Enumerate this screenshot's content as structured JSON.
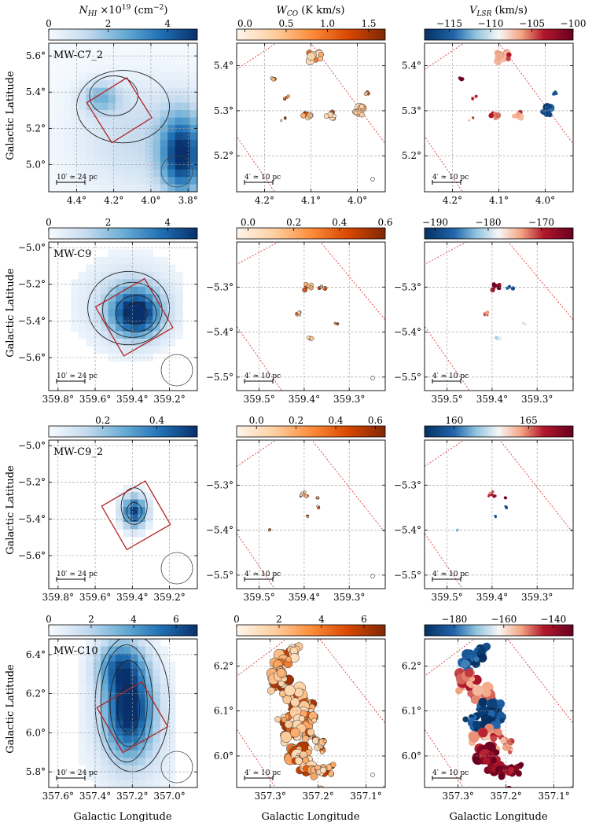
{
  "chart_data": {
    "type": "heatmap",
    "columns": [
      {
        "colorbar_title": "N_HI ×10^19 (cm^−2)",
        "title_main": "N",
        "title_sub": "HI",
        "title_rest": " ×10",
        "title_sup": "19",
        "title_unit": " (cm",
        "title_unit_sup": "−2",
        "title_end": ")",
        "colormap": "Blues"
      },
      {
        "colorbar_title": "W_CO (K km/s)",
        "title_main": "W",
        "title_sub": "CO",
        "title_rest": " (K km/s)",
        "colormap": "Oranges"
      },
      {
        "colorbar_title": "V_LSR (km/s)",
        "title_main": "V",
        "title_sub": "LSR",
        "title_rest": " (km/s)",
        "colormap": "RdBu_r"
      }
    ],
    "xlabel": "Galactic Longitude",
    "ylabel": "Galactic Latitude",
    "rows": [
      {
        "cloud": "MW-C7_2",
        "hi": {
          "cbar_ticks": [
            "0",
            "2",
            "4"
          ],
          "cbar_range": [
            0,
            5
          ],
          "xlim": [
            4.55,
            3.75
          ],
          "ylim": [
            4.85,
            5.67
          ],
          "xticks": [
            "4.4°",
            "4.2°",
            "4.0°",
            "3.8°"
          ],
          "xtick_vals": [
            4.4,
            4.2,
            4.0,
            3.8
          ],
          "yticks": [
            "5.0°",
            "5.2°",
            "5.4°",
            "5.6°"
          ],
          "ytick_vals": [
            5.0,
            5.2,
            5.4,
            5.6
          ],
          "scalebar": "10′ ≃ 24 pc"
        },
        "co": {
          "cbar_ticks": [
            "0.0",
            "0.5",
            "1.0",
            "1.5"
          ],
          "cbar_range": [
            -0.1,
            1.7
          ],
          "xlim": [
            4.26,
            3.94
          ],
          "ylim": [
            5.12,
            5.45
          ],
          "xticks": [
            "4.2°",
            "4.1°",
            "4.0°"
          ],
          "xtick_vals": [
            4.2,
            4.1,
            4.0
          ],
          "yticks": [
            "5.2°",
            "5.3°",
            "5.4°"
          ],
          "ytick_vals": [
            5.2,
            5.3,
            5.4
          ],
          "scalebar": "4′ ≃ 10 pc"
        },
        "v": {
          "cbar_ticks": [
            "−115",
            "−110",
            "−105",
            "−100"
          ],
          "cbar_range": [
            -118,
            -100
          ],
          "xlim": [
            4.26,
            3.94
          ],
          "ylim": [
            5.12,
            5.45
          ],
          "xticks": [
            "4.2°",
            "4.1°",
            "4.0°"
          ],
          "xtick_vals": [
            4.2,
            4.1,
            4.0
          ],
          "yticks": [
            "5.2°",
            "5.3°",
            "5.4°"
          ],
          "ytick_vals": [
            5.2,
            5.3,
            5.4
          ],
          "scalebar": "4′ ≃ 10 pc"
        }
      },
      {
        "cloud": "MW-C9",
        "hi": {
          "cbar_ticks": [
            "0",
            "2",
            "4"
          ],
          "cbar_range": [
            0,
            5
          ],
          "xlim": [
            359.85,
            359.05
          ],
          "ylim": [
            -5.78,
            -4.97
          ],
          "xticks": [
            "359.8°",
            "359.6°",
            "359.4°",
            "359.2°"
          ],
          "xtick_vals": [
            359.8,
            359.6,
            359.4,
            359.2
          ],
          "yticks": [
            "−5.6°",
            "−5.4°",
            "−5.2°",
            "−5.0°"
          ],
          "ytick_vals": [
            -5.6,
            -5.4,
            -5.2,
            -5.0
          ],
          "scalebar": "10′ ≃ 24 pc"
        },
        "co": {
          "cbar_ticks": [
            "0.0",
            "0.2",
            "0.4",
            "0.6"
          ],
          "cbar_range": [
            -0.05,
            0.6
          ],
          "xlim": [
            359.55,
            359.22
          ],
          "ylim": [
            -5.53,
            -5.2
          ],
          "xticks": [
            "359.5°",
            "359.4°",
            "359.3°"
          ],
          "xtick_vals": [
            359.5,
            359.4,
            359.3
          ],
          "yticks": [
            "−5.5°",
            "−5.4°",
            "−5.3°"
          ],
          "ytick_vals": [
            -5.5,
            -5.4,
            -5.3
          ],
          "scalebar": "4′ ≃ 10 pc"
        },
        "v": {
          "cbar_ticks": [
            "−190",
            "−180",
            "−170"
          ],
          "cbar_range": [
            -192,
            -164
          ],
          "xlim": [
            359.55,
            359.22
          ],
          "ylim": [
            -5.53,
            -5.2
          ],
          "xticks": [
            "359.5°",
            "359.4°",
            "359.3°"
          ],
          "xtick_vals": [
            359.5,
            359.4,
            359.3
          ],
          "yticks": [
            "−5.5°",
            "−5.4°",
            "−5.3°"
          ],
          "ytick_vals": [
            -5.5,
            -5.4,
            -5.3
          ],
          "scalebar": "4′ ≃ 10 pc"
        }
      },
      {
        "cloud": "MW-C9_2",
        "hi": {
          "cbar_ticks": [
            "0.2",
            "0.4"
          ],
          "cbar_range": [
            0,
            0.55
          ],
          "xlim": [
            359.85,
            359.05
          ],
          "ylim": [
            -5.78,
            -4.97
          ],
          "xticks": [
            "359.8°",
            "359.6°",
            "359.4°",
            "359.2°"
          ],
          "xtick_vals": [
            359.8,
            359.6,
            359.4,
            359.2
          ],
          "yticks": [
            "−5.6°",
            "−5.4°",
            "−5.2°",
            "−5.0°"
          ],
          "ytick_vals": [
            -5.6,
            -5.4,
            -5.2,
            -5.0
          ],
          "scalebar": "10′ ≃ 24 pc"
        },
        "co": {
          "cbar_ticks": [
            "0.0",
            "0.2",
            "0.4",
            "0.6"
          ],
          "cbar_range": [
            -0.1,
            0.65
          ],
          "xlim": [
            359.55,
            359.22
          ],
          "ylim": [
            -5.53,
            -5.2
          ],
          "xticks": [
            "359.5°",
            "359.4°",
            "359.3°"
          ],
          "xtick_vals": [
            359.5,
            359.4,
            359.3
          ],
          "yticks": [
            "−5.5°",
            "−5.4°",
            "−5.3°"
          ],
          "ytick_vals": [
            -5.5,
            -5.4,
            -5.3
          ],
          "scalebar": "4′ ≃ 10 pc"
        },
        "v": {
          "cbar_ticks": [
            "160",
            "165"
          ],
          "cbar_range": [
            158,
            168
          ],
          "xlim": [
            359.55,
            359.22
          ],
          "ylim": [
            -5.53,
            -5.2
          ],
          "xticks": [
            "359.5°",
            "359.4°",
            "359.3°"
          ],
          "xtick_vals": [
            359.5,
            359.4,
            359.3
          ],
          "yticks": [
            "−5.5°",
            "−5.4°",
            "−5.3°"
          ],
          "ytick_vals": [
            -5.5,
            -5.4,
            -5.3
          ],
          "scalebar": "4′ ≃ 10 pc"
        }
      },
      {
        "cloud": "MW-C10",
        "hi": {
          "cbar_ticks": [
            "0",
            "2",
            "4",
            "6"
          ],
          "cbar_range": [
            0,
            7
          ],
          "xlim": [
            357.65,
            356.85
          ],
          "ylim": [
            5.72,
            6.48
          ],
          "xticks": [
            "357.6°",
            "357.4°",
            "357.2°",
            "357.0°"
          ],
          "xtick_vals": [
            357.6,
            357.4,
            357.2,
            357.0
          ],
          "yticks": [
            "5.8°",
            "6.0°",
            "6.2°",
            "6.4°"
          ],
          "ytick_vals": [
            5.8,
            6.0,
            6.2,
            6.4
          ],
          "scalebar": "10′ ≃ 24 pc"
        },
        "co": {
          "cbar_ticks": [
            "0",
            "2",
            "4",
            "6"
          ],
          "cbar_range": [
            0,
            7
          ],
          "xlim": [
            357.37,
            357.06
          ],
          "ylim": [
            5.93,
            6.26
          ],
          "xticks": [
            "357.3°",
            "357.2°",
            "357.1°"
          ],
          "xtick_vals": [
            357.3,
            357.2,
            357.1
          ],
          "yticks": [
            "6.0°",
            "6.1°",
            "6.2°"
          ],
          "ytick_vals": [
            6.0,
            6.1,
            6.2
          ],
          "scalebar": "4′ ≃ 10 pc"
        },
        "v": {
          "cbar_ticks": [
            "−180",
            "−160",
            "−140"
          ],
          "cbar_range": [
            -192,
            -132
          ],
          "xlim": [
            357.37,
            357.06
          ],
          "ylim": [
            5.93,
            6.26
          ],
          "xticks": [
            "357.3°",
            "357.2°",
            "357.1°"
          ],
          "xtick_vals": [
            357.3,
            357.2,
            357.1
          ],
          "yticks": [
            "6.0°",
            "6.1°",
            "6.2°"
          ],
          "ytick_vals": [
            6.0,
            6.1,
            6.2
          ],
          "scalebar": "4′ ≃ 10 pc"
        }
      }
    ]
  }
}
